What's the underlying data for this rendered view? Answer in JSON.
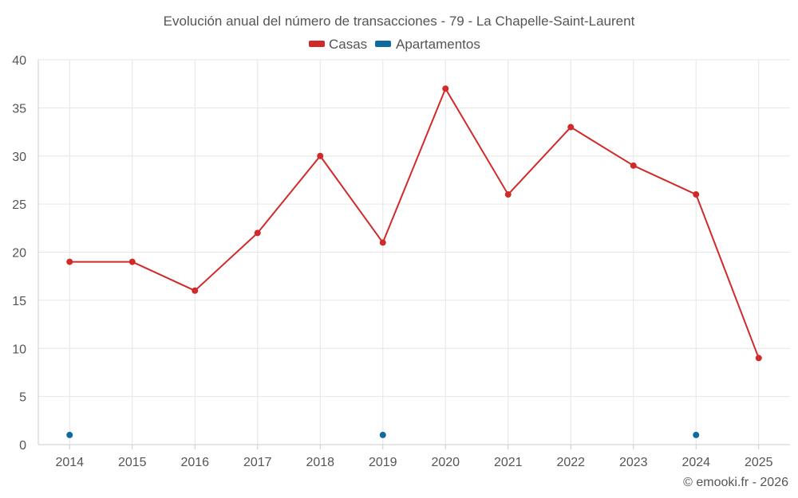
{
  "chart_data": {
    "type": "line",
    "title": "Evolución anual del número de transacciones - 79 - La Chapelle-Saint-Laurent",
    "categories": [
      "2014",
      "2015",
      "2016",
      "2017",
      "2018",
      "2019",
      "2020",
      "2021",
      "2022",
      "2023",
      "2024",
      "2025"
    ],
    "series": [
      {
        "name": "Casas",
        "color": "#d12a2a",
        "values": [
          19,
          19,
          16,
          22,
          30,
          21,
          37,
          26,
          33,
          29,
          26,
          9
        ],
        "line": true
      },
      {
        "name": "Apartamentos",
        "color": "#0f6aa0",
        "values": [
          1,
          null,
          null,
          null,
          null,
          1,
          null,
          null,
          null,
          null,
          1,
          null
        ],
        "line": false
      }
    ],
    "y_ticks": [
      "0",
      "5",
      "10",
      "15",
      "20",
      "25",
      "30",
      "35",
      "40"
    ],
    "ylim": [
      0,
      40
    ],
    "xlabel": "",
    "ylabel": "",
    "legend": "top-center",
    "grid": true
  },
  "credit": "© emooki.fr - 2026"
}
